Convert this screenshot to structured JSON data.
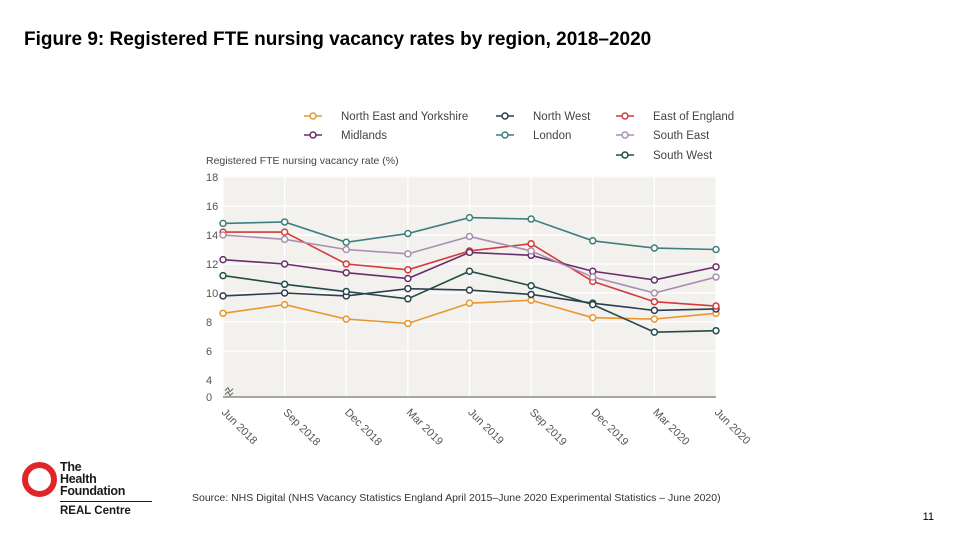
{
  "slide": {
    "title": "Figure 9: Registered FTE nursing vacancy rates by region, 2018–2020",
    "source": "Source: NHS Digital (NHS Vacancy Statistics England April 2015–June 2020 Experimental Statistics – June 2020)",
    "page_number": "11"
  },
  "logo": {
    "line1": "The",
    "line2": "Health",
    "line3": "Foundation",
    "subline": "REAL Centre",
    "color": "#e0242a"
  },
  "chart_data": {
    "type": "line",
    "ylabel": "Registered FTE nursing vacancy rate (%)",
    "xlabel": "",
    "categories": [
      "Jun 2018",
      "Sep 2018",
      "Dec 2018",
      "Mar 2019",
      "Jun 2019",
      "Sep 2019",
      "Dec 2019",
      "Mar 2020",
      "Jun 2020"
    ],
    "ylim": [
      0,
      18
    ],
    "yticks": [
      "0",
      "4",
      "6",
      "8",
      "10",
      "12",
      "14",
      "16",
      "18"
    ],
    "axis_break": "0–4",
    "grid": true,
    "legend_position": "top",
    "series": [
      {
        "name": "North East and Yorkshire",
        "color": "#e8962e",
        "values": [
          8.6,
          9.2,
          8.2,
          7.9,
          9.3,
          9.5,
          8.3,
          8.2,
          8.6
        ]
      },
      {
        "name": "North West",
        "color": "#2c3e50",
        "values": [
          9.8,
          10.0,
          9.8,
          10.3,
          10.2,
          9.9,
          9.3,
          8.8,
          8.9
        ]
      },
      {
        "name": "East of England",
        "color": "#d63a3a",
        "values": [
          14.2,
          14.2,
          12.0,
          11.6,
          12.9,
          13.4,
          10.8,
          9.4,
          9.1
        ]
      },
      {
        "name": "Midlands",
        "color": "#6a2f6b",
        "values": [
          12.3,
          12.0,
          11.4,
          11.0,
          12.8,
          12.6,
          11.5,
          10.9,
          11.8
        ]
      },
      {
        "name": "London",
        "color": "#3e7f7b",
        "values": [
          14.8,
          14.9,
          13.5,
          14.1,
          15.2,
          15.1,
          13.6,
          13.1,
          13.0
        ]
      },
      {
        "name": "South East",
        "color": "#a98fb0",
        "values": [
          14.0,
          13.7,
          13.0,
          12.7,
          13.9,
          12.9,
          11.1,
          10.0,
          11.1
        ]
      },
      {
        "name": "South West",
        "color": "#234b4a",
        "values": [
          11.2,
          10.6,
          10.1,
          9.6,
          11.5,
          10.5,
          9.2,
          7.3,
          7.4
        ]
      }
    ]
  }
}
